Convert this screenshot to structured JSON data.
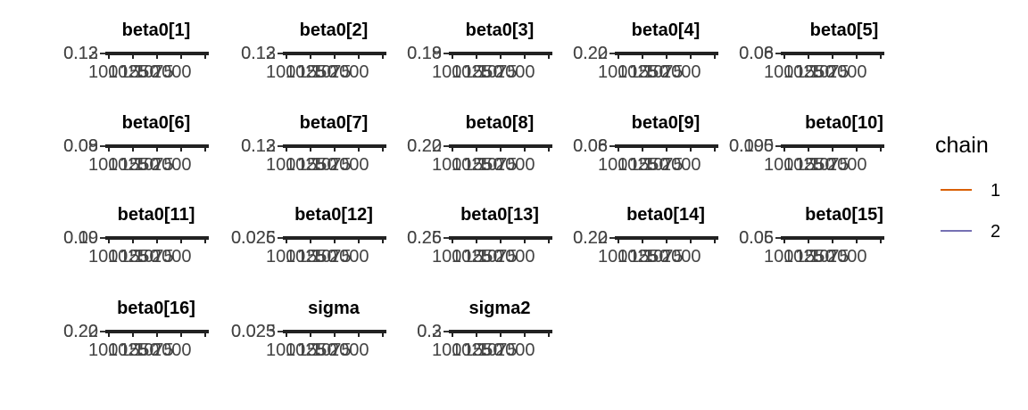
{
  "chart_data": {
    "type": "line",
    "layout": "facet-grid",
    "legend": {
      "title": "chain",
      "position": "right",
      "entries": [
        {
          "label": "1",
          "color": "#d95f02"
        },
        {
          "label": "2",
          "color": "#7570b3"
        }
      ]
    },
    "x_ticks": [
      "100",
      "1025",
      "1550",
      "1075",
      "2000"
    ],
    "panels": [
      {
        "title": "beta0[1]",
        "y_ticks": [
          "0.13",
          "0.12"
        ]
      },
      {
        "title": "beta0[2]",
        "y_ticks": [
          "0.13",
          "0.12"
        ]
      },
      {
        "title": "beta0[3]",
        "y_ticks": [
          "0.18",
          "0.19"
        ]
      },
      {
        "title": "beta0[4]",
        "y_ticks": [
          "0.22",
          "0.20"
        ]
      },
      {
        "title": "beta0[5]",
        "y_ticks": [
          "0.06",
          "0.08"
        ]
      },
      {
        "title": "beta0[6]",
        "y_ticks": [
          "0.09",
          "0.08"
        ]
      },
      {
        "title": "beta0[7]",
        "y_ticks": [
          "0.13",
          "0.12"
        ]
      },
      {
        "title": "beta0[8]",
        "y_ticks": [
          "0.22",
          "0.20"
        ]
      },
      {
        "title": "beta0[9]",
        "y_ticks": [
          "0.06",
          "0.08"
        ]
      },
      {
        "title": "beta0[10]",
        "y_ticks": [
          "0.095",
          "0.100"
        ]
      },
      {
        "title": "beta0[11]",
        "y_ticks": [
          "0.09",
          "0.10"
        ]
      },
      {
        "title": "beta0[12]",
        "y_ticks": [
          "0.025",
          "0.026"
        ]
      },
      {
        "title": "beta0[13]",
        "y_ticks": [
          "0.25",
          "0.26"
        ]
      },
      {
        "title": "beta0[14]",
        "y_ticks": [
          "0.22",
          "0.20"
        ]
      },
      {
        "title": "beta0[15]",
        "y_ticks": [
          "0.06",
          "0.05"
        ]
      },
      {
        "title": "beta0[16]",
        "y_ticks": [
          "0.22",
          "0.20"
        ]
      },
      {
        "title": "sigma",
        "y_ticks": [
          "0.025",
          "0.023"
        ]
      },
      {
        "title": "sigma2",
        "y_ticks": [
          "0.3",
          "0.2"
        ]
      }
    ]
  }
}
